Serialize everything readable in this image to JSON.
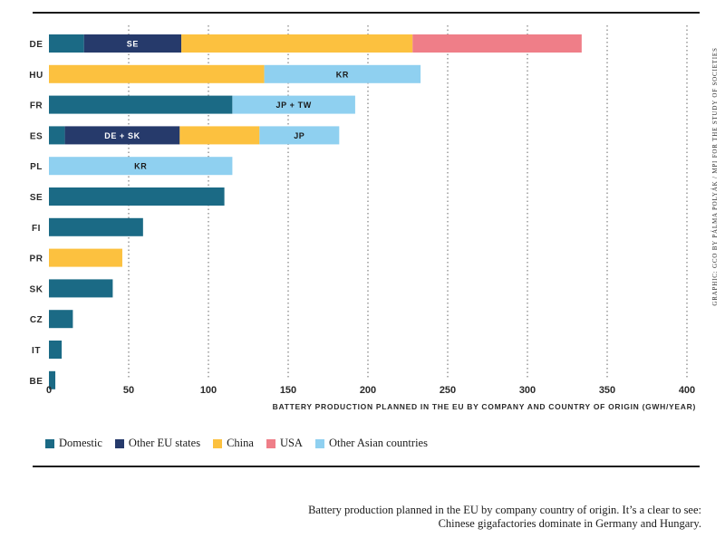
{
  "chart_data": {
    "type": "bar",
    "orientation": "horizontal",
    "stacked": true,
    "xlabel": "BATTERY PRODUCTION PLANNED IN THE EU BY COMPANY AND COUNTRY OF ORIGIN (GWH/YEAR)",
    "xlim": [
      0,
      400
    ],
    "xticks": [
      0,
      50,
      100,
      150,
      200,
      250,
      300,
      350,
      400
    ],
    "grid": "vertical dotted",
    "legend_position": "bottom-left",
    "categories": [
      "DE",
      "HU",
      "FR",
      "ES",
      "PL",
      "SE",
      "FI",
      "PR",
      "SK",
      "CZ",
      "IT",
      "BE"
    ],
    "series_meta": [
      {
        "name": "Domestic",
        "color": "#1b6a85",
        "label_color": "#ffffff"
      },
      {
        "name": "Other EU states",
        "color": "#263a6b",
        "label_color": "#ffffff"
      },
      {
        "name": "China",
        "color": "#fcc13f",
        "label_color": "#1a1a1a"
      },
      {
        "name": "USA",
        "color": "#ef7e88",
        "label_color": "#1a1a1a"
      },
      {
        "name": "Other Asian countries",
        "color": "#8fd0f0",
        "label_color": "#1a1a1a"
      }
    ],
    "rows": [
      {
        "category": "DE",
        "segments": [
          {
            "series": "Domestic",
            "value": 22
          },
          {
            "series": "Other EU states",
            "value": 61,
            "label": "SE"
          },
          {
            "series": "China",
            "value": 145
          },
          {
            "series": "USA",
            "value": 106
          }
        ]
      },
      {
        "category": "HU",
        "segments": [
          {
            "series": "China",
            "value": 135
          },
          {
            "series": "Other Asian countries",
            "value": 98,
            "label": "KR"
          }
        ]
      },
      {
        "category": "FR",
        "segments": [
          {
            "series": "Domestic",
            "value": 115
          },
          {
            "series": "Other Asian countries",
            "value": 77,
            "label": "JP + TW"
          }
        ]
      },
      {
        "category": "ES",
        "segments": [
          {
            "series": "Domestic",
            "value": 10
          },
          {
            "series": "Other EU states",
            "value": 72,
            "label": "DE + SK"
          },
          {
            "series": "China",
            "value": 50
          },
          {
            "series": "Other Asian countries",
            "value": 50,
            "label": "JP"
          }
        ]
      },
      {
        "category": "PL",
        "segments": [
          {
            "series": "Other Asian countries",
            "value": 115,
            "label": "KR"
          }
        ]
      },
      {
        "category": "SE",
        "segments": [
          {
            "series": "Domestic",
            "value": 110
          }
        ]
      },
      {
        "category": "FI",
        "segments": [
          {
            "series": "Domestic",
            "value": 59
          }
        ]
      },
      {
        "category": "PR",
        "segments": [
          {
            "series": "China",
            "value": 46
          }
        ]
      },
      {
        "category": "SK",
        "segments": [
          {
            "series": "Domestic",
            "value": 40
          }
        ]
      },
      {
        "category": "CZ",
        "segments": [
          {
            "series": "Domestic",
            "value": 15
          }
        ]
      },
      {
        "category": "IT",
        "segments": [
          {
            "series": "Domestic",
            "value": 8
          }
        ]
      },
      {
        "category": "BE",
        "segments": [
          {
            "series": "Domestic",
            "value": 4
          }
        ]
      }
    ]
  },
  "legend": [
    {
      "label": "Domestic",
      "color": "#1b6a85"
    },
    {
      "label": "Other EU states",
      "color": "#263a6b"
    },
    {
      "label": "China",
      "color": "#fcc13f"
    },
    {
      "label": "USA",
      "color": "#ef7e88"
    },
    {
      "label": "Other Asian countries",
      "color": "#8fd0f0"
    }
  ],
  "credit": "GRAPHIC: GCO BY PÁLMA POLYÁK / MPI FOR THE STUDY OF SOCIETIES",
  "caption": "Battery production planned in the EU by company country of origin. It’s a clear to see: Chinese gigafactories dominate in Germany and Hungary."
}
